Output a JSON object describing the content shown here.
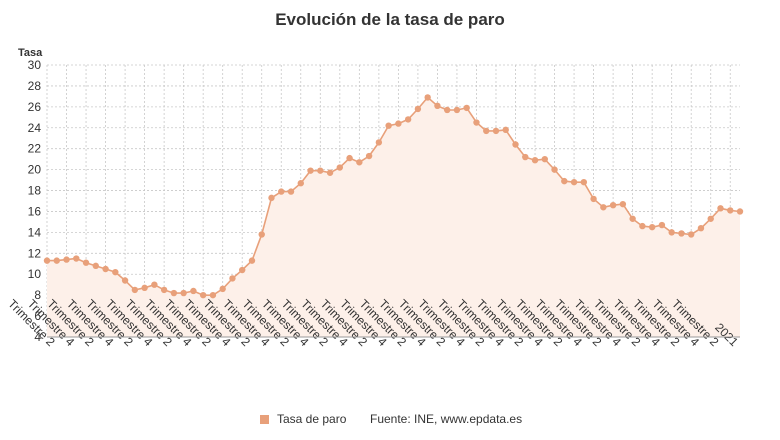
{
  "title": "Evolución de la tasa de paro",
  "source": "Fuente: INE, www.epdata.es",
  "colors": {
    "line": "#e8a07a",
    "fill": "#fdf0e9",
    "grid": "#c8c8c8"
  },
  "chart_data": {
    "type": "line",
    "title": "Evolución de la tasa de paro",
    "ylabel": "Tasa",
    "xlabel": "",
    "ylim": [
      4,
      30
    ],
    "yticks": [
      4,
      6,
      8,
      10,
      12,
      14,
      16,
      18,
      20,
      22,
      24,
      26,
      28,
      30
    ],
    "grid": true,
    "legend_position": "bottom",
    "x_tick_labels": [
      "Trimestre 2",
      "Trimestre 4",
      "Trimestre 2",
      "Trimestre 4",
      "Trimestre 2",
      "Trimestre 4",
      "Trimestre 2",
      "Trimestre 4",
      "Trimestre 2",
      "Trimestre 4",
      "Trimestre 2",
      "Trimestre 4",
      "Trimestre 2",
      "Trimestre 4",
      "Trimestre 2",
      "Trimestre 4",
      "Trimestre 2",
      "Trimestre 4",
      "Trimestre 2",
      "Trimestre 4",
      "Trimestre 2",
      "Trimestre 4",
      "Trimestre 2",
      "Trimestre 4",
      "Trimestre 2",
      "Trimestre 4",
      "Trimestre 2",
      "Trimestre 4",
      "Trimestre 2",
      "Trimestre 4",
      "Trimestre 2",
      "Trimestre 4",
      "Trimestre 2",
      "Trimestre 4",
      "Trimestre 2",
      "2021"
    ],
    "series": [
      {
        "name": "Tasa de paro",
        "values": [
          11.3,
          11.3,
          11.4,
          11.5,
          11.1,
          10.8,
          10.5,
          10.2,
          9.4,
          8.5,
          8.7,
          9.0,
          8.5,
          8.2,
          8.2,
          8.4,
          8.0,
          8.0,
          8.6,
          9.6,
          10.4,
          11.3,
          13.8,
          17.3,
          17.9,
          17.9,
          18.7,
          19.9,
          19.9,
          19.7,
          20.2,
          21.1,
          20.7,
          21.3,
          22.6,
          24.2,
          24.4,
          24.8,
          25.8,
          26.9,
          26.1,
          25.7,
          25.7,
          25.9,
          24.5,
          23.7,
          23.7,
          23.8,
          22.4,
          21.2,
          20.9,
          21.0,
          20.0,
          18.9,
          18.8,
          18.8,
          17.2,
          16.4,
          16.6,
          16.7,
          15.3,
          14.6,
          14.5,
          14.7,
          14.0,
          13.9,
          13.8,
          14.4,
          15.3,
          16.3,
          16.1,
          16.0
        ]
      }
    ]
  }
}
